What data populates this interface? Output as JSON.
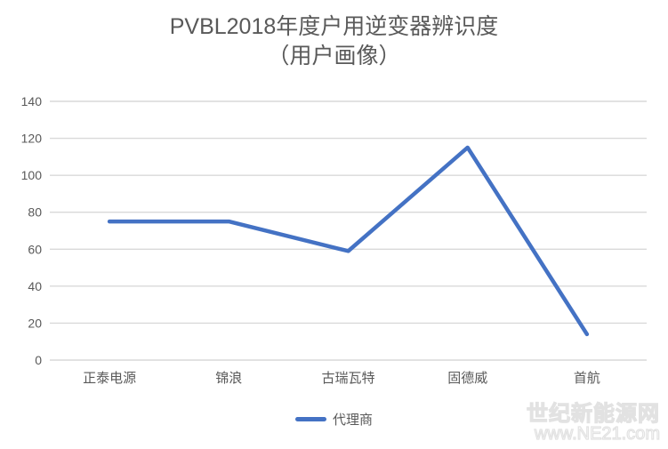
{
  "title": {
    "line1": "PVBL2018年度户用逆变器辨识度",
    "line2": "（用户画像）"
  },
  "chart_data": {
    "type": "line",
    "title": "PVBL2018年度户用逆变器辨识度（用户画像）",
    "categories": [
      "正泰电源",
      "锦浪",
      "古瑞瓦特",
      "固德威",
      "首航"
    ],
    "series": [
      {
        "name": "代理商",
        "values": [
          75,
          75,
          59,
          115,
          14
        ]
      }
    ],
    "xlabel": "",
    "ylabel": "",
    "ylim": [
      0,
      140
    ],
    "ytick_step": 20,
    "ytick_labels": [
      "0",
      "20",
      "40",
      "60",
      "80",
      "100",
      "120",
      "140"
    ],
    "grid": "horizontal",
    "legend_position": "bottom"
  },
  "legend": {
    "label": "代理商"
  },
  "watermark": {
    "line1": "世纪新能源网",
    "line2": "www.NE21.com"
  },
  "colors": {
    "line": "#4472C4",
    "gridline": "#D9D9D9",
    "text": "#595959",
    "background": "#FFFFFF"
  }
}
